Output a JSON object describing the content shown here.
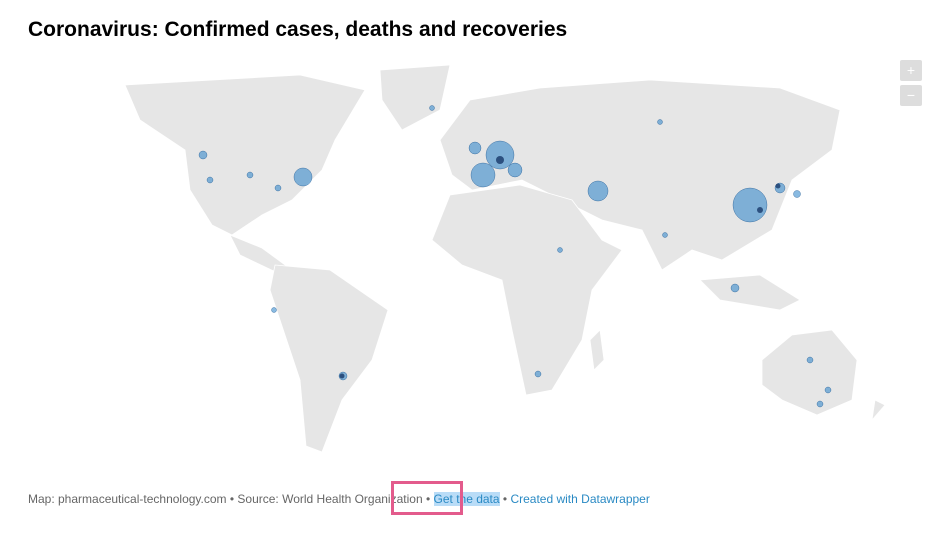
{
  "header": {
    "title": "Coronavirus: Confirmed cases, deaths and recoveries"
  },
  "zoom": {
    "zoom_in": "+",
    "zoom_out": "−"
  },
  "footer": {
    "source": "Map: pharmaceutical-technology.com • Source: World Health Organization",
    "separators": [
      "•",
      "•"
    ],
    "get_data": "Get the data",
    "created": "Created with Datawrapper"
  }
}
